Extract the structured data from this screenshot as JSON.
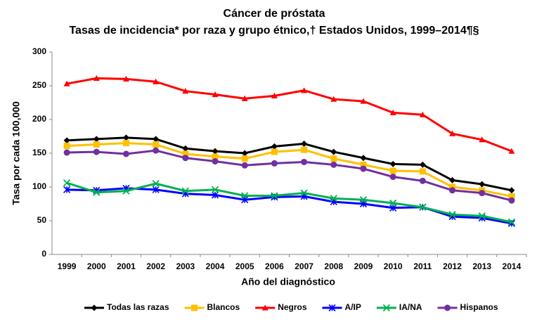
{
  "chart_data": {
    "type": "line",
    "title": "Cáncer de próstata",
    "subtitle": "Tasas de incidencia* por raza y grupo étnico,† Estados Unidos, 1999–2014¶§",
    "x_label": "Año del diagnóstico",
    "y_label": "Tasa por cada 100,000",
    "categories": [
      "1999",
      "2000",
      "2001",
      "2002",
      "2003",
      "2004",
      "2005",
      "2006",
      "2007",
      "2008",
      "2009",
      "2010",
      "2011",
      "2012",
      "2013",
      "2014"
    ],
    "ylim": [
      0,
      300
    ],
    "yticks": [
      0,
      50,
      100,
      150,
      200,
      250,
      300
    ],
    "grid": false,
    "legend": "bottom",
    "series": [
      {
        "name": "Todas las razas",
        "color": "#000000",
        "marker": "diamond",
        "values": [
          169,
          171,
          173,
          171,
          157,
          153,
          150,
          160,
          164,
          152,
          143,
          134,
          133,
          110,
          104,
          95
        ]
      },
      {
        "name": "Blancos",
        "color": "#ffc000",
        "marker": "square",
        "values": [
          161,
          163,
          165,
          163,
          149,
          145,
          142,
          152,
          155,
          142,
          133,
          124,
          123,
          100,
          95,
          86
        ]
      },
      {
        "name": "Negros",
        "color": "#ff0000",
        "marker": "triangle",
        "values": [
          253,
          261,
          260,
          256,
          242,
          237,
          231,
          235,
          243,
          230,
          227,
          210,
          207,
          179,
          170,
          153
        ]
      },
      {
        "name": "A/IP",
        "color": "#0000ff",
        "marker": "asterisk",
        "values": [
          96,
          95,
          98,
          96,
          90,
          88,
          81,
          85,
          86,
          78,
          75,
          69,
          70,
          56,
          54,
          46
        ]
      },
      {
        "name": "IA/NA",
        "color": "#00b050",
        "marker": "cross",
        "values": [
          106,
          92,
          94,
          105,
          94,
          96,
          87,
          87,
          91,
          83,
          81,
          76,
          70,
          59,
          57,
          48
        ]
      },
      {
        "name": "Hispanos",
        "color": "#7030a0",
        "marker": "circle",
        "values": [
          151,
          152,
          149,
          154,
          143,
          138,
          132,
          135,
          137,
          133,
          127,
          115,
          109,
          95,
          91,
          80
        ]
      }
    ]
  }
}
